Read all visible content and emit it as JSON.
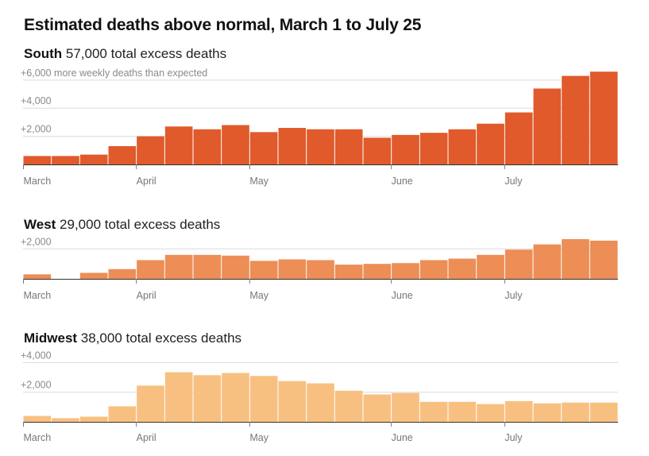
{
  "title": "Estimated deaths above normal, March 1 to July 25",
  "chart_data": [
    {
      "type": "bar",
      "name": "South",
      "subtitle": "57,000 total excess deaths",
      "color": "#e05a2b",
      "ylim": [
        0,
        6500
      ],
      "yticks": [
        {
          "value": 2000,
          "label": "+2,000"
        },
        {
          "value": 4000,
          "label": "+4,000"
        },
        {
          "value": 6000,
          "label": "+6,000 more weekly deaths than expected"
        }
      ],
      "x_tick_labels": [
        {
          "index": 0,
          "label": "March"
        },
        {
          "index": 4,
          "label": "April"
        },
        {
          "index": 8,
          "label": "May"
        },
        {
          "index": 13,
          "label": "June"
        },
        {
          "index": 17,
          "label": "July"
        }
      ],
      "values": [
        600,
        600,
        700,
        1300,
        2000,
        2700,
        2500,
        2800,
        2300,
        2600,
        2500,
        2500,
        1900,
        2100,
        2250,
        2500,
        2900,
        3700,
        5400,
        6300,
        6600
      ]
    },
    {
      "type": "bar",
      "name": "West",
      "subtitle": "29,000 total excess deaths",
      "color": "#ec8e55",
      "ylim": [
        0,
        2600
      ],
      "yticks": [
        {
          "value": 2000,
          "label": "+2,000"
        }
      ],
      "x_tick_labels": [
        {
          "index": 0,
          "label": "March"
        },
        {
          "index": 4,
          "label": "April"
        },
        {
          "index": 8,
          "label": "May"
        },
        {
          "index": 13,
          "label": "June"
        },
        {
          "index": 17,
          "label": "July"
        }
      ],
      "values": [
        300,
        0,
        400,
        650,
        1250,
        1600,
        1600,
        1550,
        1200,
        1300,
        1250,
        950,
        1000,
        1050,
        1250,
        1350,
        1600,
        1950,
        2300,
        2650,
        2550
      ]
    },
    {
      "type": "bar",
      "name": "Midwest",
      "subtitle": "38,000 total excess deaths",
      "color": "#f8c080",
      "ylim": [
        0,
        4400
      ],
      "yticks": [
        {
          "value": 2000,
          "label": "+2,000"
        },
        {
          "value": 4000,
          "label": "+4,000"
        }
      ],
      "x_tick_labels": [
        {
          "index": 0,
          "label": "March"
        },
        {
          "index": 4,
          "label": "April"
        },
        {
          "index": 8,
          "label": "May"
        },
        {
          "index": 13,
          "label": "June"
        },
        {
          "index": 17,
          "label": "July"
        }
      ],
      "values": [
        400,
        250,
        350,
        1050,
        2450,
        3350,
        3150,
        3300,
        3100,
        2750,
        2600,
        2100,
        1850,
        1950,
        1350,
        1350,
        1200,
        1400,
        1250,
        1300,
        1300
      ]
    }
  ]
}
